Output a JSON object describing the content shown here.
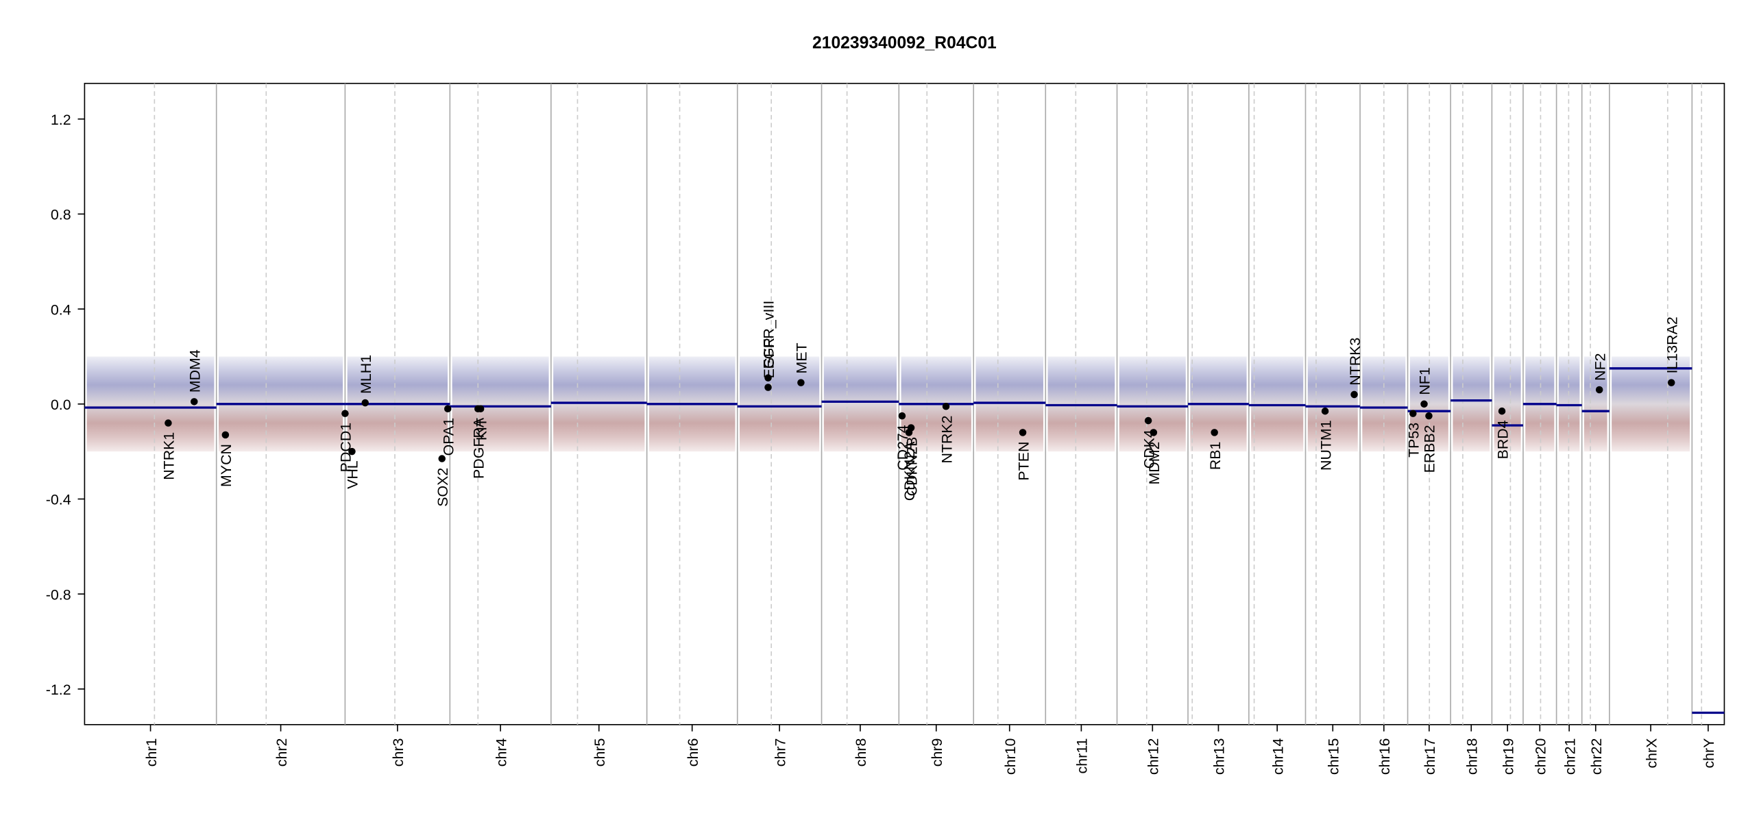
{
  "chart_data": {
    "type": "cnv",
    "title": "210239340092_R04C01",
    "xlim": [
      0,
      3097
    ],
    "ylim": [
      -1.35,
      1.35
    ],
    "yticks": [
      -1.2,
      -0.8,
      -0.4,
      {
        "value": 0,
        "label": "0.0"
      },
      0.4,
      0.8,
      1.2
    ],
    "categories": [
      "chr1",
      "chr2",
      "chr3",
      "chr4",
      "chr5",
      "chr6",
      "chr7",
      "chr8",
      "chr9",
      "chr10",
      "chr11",
      "chr12",
      "chr13",
      "chr14",
      "chr15",
      "chr16",
      "chr17",
      "chr18",
      "chr19",
      "chr20",
      "chr21",
      "chr22",
      "chrX",
      "chrY"
    ],
    "chrom_start": [
      0,
      249,
      492,
      690,
      881,
      1062,
      1233,
      1392,
      1538,
      1679,
      1815,
      1950,
      2084,
      2199,
      2306,
      2409,
      2499,
      2580,
      2658,
      2717,
      2780,
      2828,
      2880,
      3036
    ],
    "chrom_end": [
      249,
      492,
      690,
      881,
      1062,
      1233,
      1392,
      1538,
      1679,
      1815,
      1950,
      2084,
      2199,
      2306,
      2409,
      2499,
      2580,
      2658,
      2717,
      2780,
      2828,
      2880,
      3036,
      3097
    ],
    "centromeres": [
      132,
      343,
      586,
      743,
      931,
      1124,
      1297,
      1440,
      1591,
      1725,
      1872,
      2006,
      2092,
      2209,
      2326,
      2454,
      2540,
      2603,
      2693,
      2750,
      2803,
      2844,
      2990,
      3054
    ],
    "values": [
      -0.015,
      0.0,
      0.0,
      -0.01,
      0.005,
      0.0,
      -0.01,
      0.01,
      0.0,
      0.005,
      -0.005,
      -0.01,
      0.0,
      -0.005,
      -0.01,
      -0.015,
      -0.03,
      0.015,
      -0.09,
      0.0,
      -0.005,
      -0.03,
      0.15,
      -1.3
    ],
    "segment_color": "#00008b",
    "genes": {
      "names": [
        "NTRK1",
        "MDM4",
        "MYCN",
        "PDCD1",
        "VHL",
        "MLH1",
        "SOX2",
        "OPA1",
        "PDGFRA",
        "KIT",
        "EGFR",
        "EGFR_vIII",
        "MET",
        "CD274",
        "CDKN2A",
        "CDKN2B",
        "NTRK2",
        "PTEN",
        "CDK4",
        "MDM2",
        "RB1",
        "NUTM1",
        "NTRK3",
        "TP53",
        "NF1",
        "ERBB2",
        "BRD4",
        "NF2",
        "IL13RA2"
      ],
      "x": [
        158,
        207,
        266,
        492,
        505,
        530,
        675,
        686,
        743,
        748,
        1291,
        1291,
        1353,
        1544,
        1557,
        1561,
        1627,
        1772,
        2009,
        2019,
        2134,
        2343,
        2398,
        2509,
        2530,
        2539,
        2677,
        2861,
        2997
      ],
      "values": [
        -0.08,
        0.01,
        -0.13,
        -0.04,
        -0.2,
        0.005,
        -0.23,
        -0.02,
        -0.02,
        -0.02,
        0.07,
        0.11,
        0.09,
        -0.05,
        -0.12,
        -0.1,
        -0.01,
        -0.12,
        -0.07,
        -0.12,
        -0.12,
        -0.03,
        0.04,
        -0.04,
        0.0,
        -0.05,
        -0.03,
        0.06,
        0.09
      ]
    }
  }
}
